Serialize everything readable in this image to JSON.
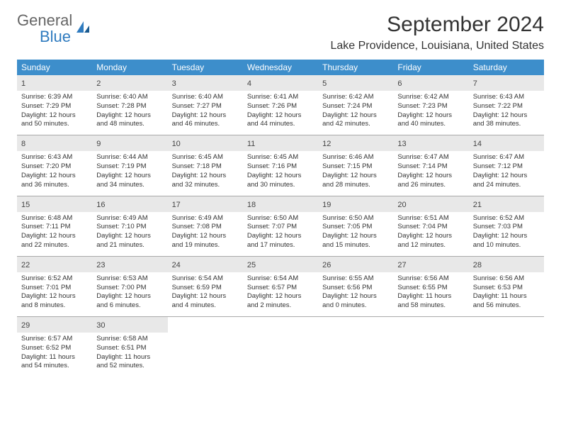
{
  "logo": {
    "text1": "General",
    "text2": "Blue"
  },
  "title": "September 2024",
  "location": "Lake Providence, Louisiana, United States",
  "dayNames": [
    "Sunday",
    "Monday",
    "Tuesday",
    "Wednesday",
    "Thursday",
    "Friday",
    "Saturday"
  ],
  "colors": {
    "headerBg": "#3d8ecb",
    "headerText": "#ffffff",
    "dayNumBg": "#e8e8e8",
    "logoAccent": "#2f7bbf",
    "textDark": "#333333",
    "borderColor": "#aaaaaa"
  },
  "weeks": [
    [
      {
        "n": "1",
        "sr": "Sunrise: 6:39 AM",
        "ss": "Sunset: 7:29 PM",
        "d1": "Daylight: 12 hours",
        "d2": "and 50 minutes."
      },
      {
        "n": "2",
        "sr": "Sunrise: 6:40 AM",
        "ss": "Sunset: 7:28 PM",
        "d1": "Daylight: 12 hours",
        "d2": "and 48 minutes."
      },
      {
        "n": "3",
        "sr": "Sunrise: 6:40 AM",
        "ss": "Sunset: 7:27 PM",
        "d1": "Daylight: 12 hours",
        "d2": "and 46 minutes."
      },
      {
        "n": "4",
        "sr": "Sunrise: 6:41 AM",
        "ss": "Sunset: 7:26 PM",
        "d1": "Daylight: 12 hours",
        "d2": "and 44 minutes."
      },
      {
        "n": "5",
        "sr": "Sunrise: 6:42 AM",
        "ss": "Sunset: 7:24 PM",
        "d1": "Daylight: 12 hours",
        "d2": "and 42 minutes."
      },
      {
        "n": "6",
        "sr": "Sunrise: 6:42 AM",
        "ss": "Sunset: 7:23 PM",
        "d1": "Daylight: 12 hours",
        "d2": "and 40 minutes."
      },
      {
        "n": "7",
        "sr": "Sunrise: 6:43 AM",
        "ss": "Sunset: 7:22 PM",
        "d1": "Daylight: 12 hours",
        "d2": "and 38 minutes."
      }
    ],
    [
      {
        "n": "8",
        "sr": "Sunrise: 6:43 AM",
        "ss": "Sunset: 7:20 PM",
        "d1": "Daylight: 12 hours",
        "d2": "and 36 minutes."
      },
      {
        "n": "9",
        "sr": "Sunrise: 6:44 AM",
        "ss": "Sunset: 7:19 PM",
        "d1": "Daylight: 12 hours",
        "d2": "and 34 minutes."
      },
      {
        "n": "10",
        "sr": "Sunrise: 6:45 AM",
        "ss": "Sunset: 7:18 PM",
        "d1": "Daylight: 12 hours",
        "d2": "and 32 minutes."
      },
      {
        "n": "11",
        "sr": "Sunrise: 6:45 AM",
        "ss": "Sunset: 7:16 PM",
        "d1": "Daylight: 12 hours",
        "d2": "and 30 minutes."
      },
      {
        "n": "12",
        "sr": "Sunrise: 6:46 AM",
        "ss": "Sunset: 7:15 PM",
        "d1": "Daylight: 12 hours",
        "d2": "and 28 minutes."
      },
      {
        "n": "13",
        "sr": "Sunrise: 6:47 AM",
        "ss": "Sunset: 7:14 PM",
        "d1": "Daylight: 12 hours",
        "d2": "and 26 minutes."
      },
      {
        "n": "14",
        "sr": "Sunrise: 6:47 AM",
        "ss": "Sunset: 7:12 PM",
        "d1": "Daylight: 12 hours",
        "d2": "and 24 minutes."
      }
    ],
    [
      {
        "n": "15",
        "sr": "Sunrise: 6:48 AM",
        "ss": "Sunset: 7:11 PM",
        "d1": "Daylight: 12 hours",
        "d2": "and 22 minutes."
      },
      {
        "n": "16",
        "sr": "Sunrise: 6:49 AM",
        "ss": "Sunset: 7:10 PM",
        "d1": "Daylight: 12 hours",
        "d2": "and 21 minutes."
      },
      {
        "n": "17",
        "sr": "Sunrise: 6:49 AM",
        "ss": "Sunset: 7:08 PM",
        "d1": "Daylight: 12 hours",
        "d2": "and 19 minutes."
      },
      {
        "n": "18",
        "sr": "Sunrise: 6:50 AM",
        "ss": "Sunset: 7:07 PM",
        "d1": "Daylight: 12 hours",
        "d2": "and 17 minutes."
      },
      {
        "n": "19",
        "sr": "Sunrise: 6:50 AM",
        "ss": "Sunset: 7:05 PM",
        "d1": "Daylight: 12 hours",
        "d2": "and 15 minutes."
      },
      {
        "n": "20",
        "sr": "Sunrise: 6:51 AM",
        "ss": "Sunset: 7:04 PM",
        "d1": "Daylight: 12 hours",
        "d2": "and 12 minutes."
      },
      {
        "n": "21",
        "sr": "Sunrise: 6:52 AM",
        "ss": "Sunset: 7:03 PM",
        "d1": "Daylight: 12 hours",
        "d2": "and 10 minutes."
      }
    ],
    [
      {
        "n": "22",
        "sr": "Sunrise: 6:52 AM",
        "ss": "Sunset: 7:01 PM",
        "d1": "Daylight: 12 hours",
        "d2": "and 8 minutes."
      },
      {
        "n": "23",
        "sr": "Sunrise: 6:53 AM",
        "ss": "Sunset: 7:00 PM",
        "d1": "Daylight: 12 hours",
        "d2": "and 6 minutes."
      },
      {
        "n": "24",
        "sr": "Sunrise: 6:54 AM",
        "ss": "Sunset: 6:59 PM",
        "d1": "Daylight: 12 hours",
        "d2": "and 4 minutes."
      },
      {
        "n": "25",
        "sr": "Sunrise: 6:54 AM",
        "ss": "Sunset: 6:57 PM",
        "d1": "Daylight: 12 hours",
        "d2": "and 2 minutes."
      },
      {
        "n": "26",
        "sr": "Sunrise: 6:55 AM",
        "ss": "Sunset: 6:56 PM",
        "d1": "Daylight: 12 hours",
        "d2": "and 0 minutes."
      },
      {
        "n": "27",
        "sr": "Sunrise: 6:56 AM",
        "ss": "Sunset: 6:55 PM",
        "d1": "Daylight: 11 hours",
        "d2": "and 58 minutes."
      },
      {
        "n": "28",
        "sr": "Sunrise: 6:56 AM",
        "ss": "Sunset: 6:53 PM",
        "d1": "Daylight: 11 hours",
        "d2": "and 56 minutes."
      }
    ],
    [
      {
        "n": "29",
        "sr": "Sunrise: 6:57 AM",
        "ss": "Sunset: 6:52 PM",
        "d1": "Daylight: 11 hours",
        "d2": "and 54 minutes."
      },
      {
        "n": "30",
        "sr": "Sunrise: 6:58 AM",
        "ss": "Sunset: 6:51 PM",
        "d1": "Daylight: 11 hours",
        "d2": "and 52 minutes."
      },
      null,
      null,
      null,
      null,
      null
    ]
  ]
}
